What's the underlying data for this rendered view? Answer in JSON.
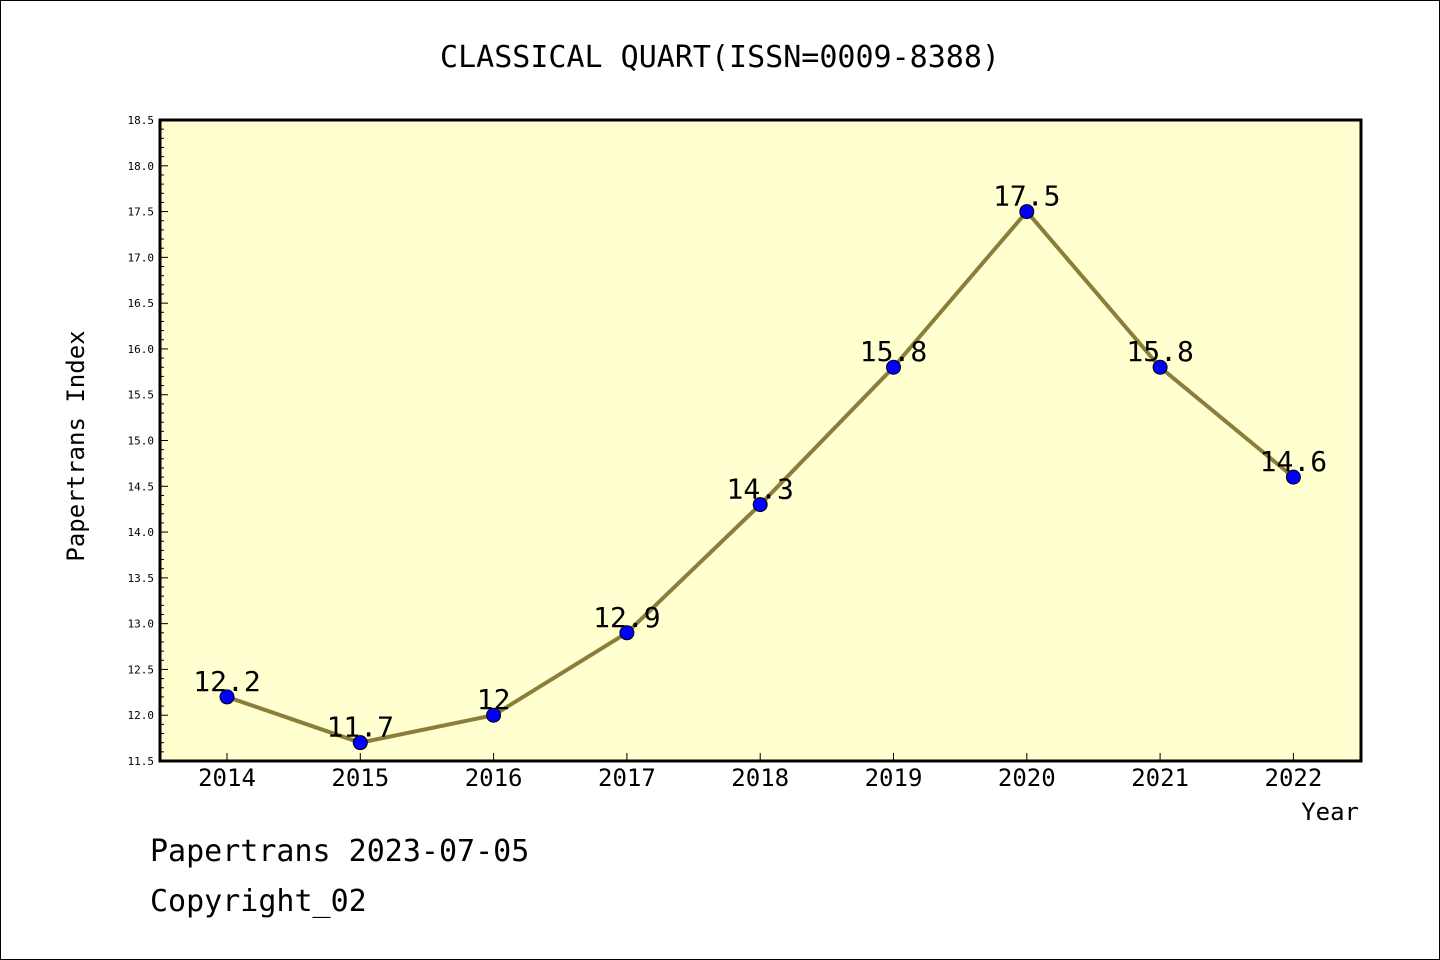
{
  "chart_data": {
    "type": "line",
    "title": "CLASSICAL QUART(ISSN=0009-8388)",
    "xlabel": "Year",
    "ylabel": "Papertrans Index",
    "categories": [
      "2014",
      "2015",
      "2016",
      "2017",
      "2018",
      "2019",
      "2020",
      "2021",
      "2022"
    ],
    "series": [
      {
        "values": [
          12.2,
          11.7,
          12,
          12.9,
          14.3,
          15.8,
          17.5,
          15.8,
          14.6
        ],
        "labels": [
          "12.2",
          "11.7",
          "12",
          "12.9",
          "14.3",
          "15.8",
          "17.5",
          "15.8",
          "14.6"
        ]
      }
    ],
    "ylim": [
      11.5,
      18.5
    ],
    "yticks": [
      "11.5",
      "12.0",
      "12.5",
      "13.0",
      "13.5",
      "14.0",
      "14.5",
      "15.0",
      "15.5",
      "16.0",
      "16.5",
      "17.0",
      "17.5",
      "18.0",
      "18.5"
    ],
    "grid": false,
    "colors": {
      "plot_background": "#ffffd0",
      "line": "#8b7d3a",
      "marker": "#0000ff"
    }
  },
  "footer": {
    "date_text": "Papertrans 2023-07-05",
    "copyright_text": "Copyright_02"
  }
}
